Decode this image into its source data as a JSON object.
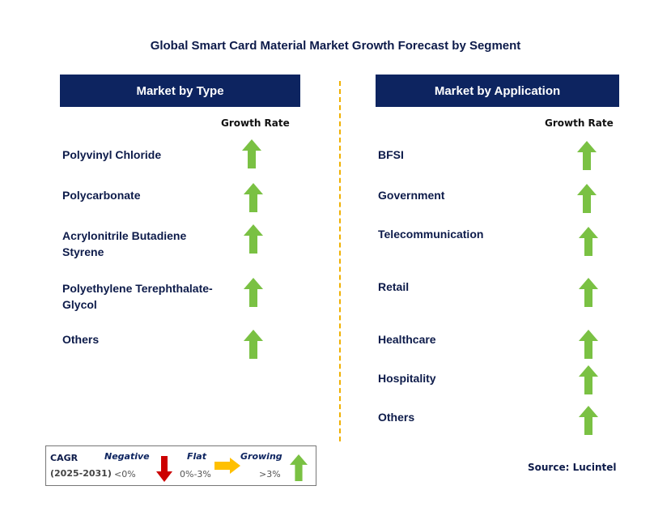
{
  "title": "Global Smart Card Material Market Growth Forecast by Segment",
  "left_panel": {
    "header": "Market by Type",
    "growth_label": "Growth Rate",
    "items": [
      {
        "label": "Polyvinyl Chloride",
        "trend": "growing"
      },
      {
        "label": "Polycarbonate",
        "trend": "growing"
      },
      {
        "label": "Acrylonitrile Butadiene Styrene",
        "trend": "growing"
      },
      {
        "label": "Polyethylene Terephthalate-Glycol",
        "trend": "growing"
      },
      {
        "label": "Others",
        "trend": "growing"
      }
    ]
  },
  "right_panel": {
    "header": "Market by Application",
    "growth_label": "Growth Rate",
    "items": [
      {
        "label": "BFSI",
        "trend": "growing"
      },
      {
        "label": "Government",
        "trend": "growing"
      },
      {
        "label": "Telecommunication",
        "trend": "growing"
      },
      {
        "label": "Retail",
        "trend": "growing"
      },
      {
        "label": "Healthcare",
        "trend": "growing"
      },
      {
        "label": "Hospitality",
        "trend": "growing"
      },
      {
        "label": "Others",
        "trend": "growing"
      }
    ]
  },
  "legend": {
    "cagr": "CAGR",
    "period": "(2025-2031)",
    "negative": {
      "label": "Negative",
      "range": "<0%",
      "color": "#cc0000",
      "icon": "down-arrow-icon"
    },
    "flat": {
      "label": "Flat",
      "range": "0%-3%",
      "color": "#ffc000",
      "icon": "right-arrow-icon"
    },
    "growing": {
      "label": "Growing",
      "range": ">3%",
      "color": "#7ac143",
      "icon": "up-arrow-icon"
    }
  },
  "source": "Source: Lucintel",
  "colors": {
    "header_bg": "#0d2460",
    "arrow_up": "#7ac143",
    "divider": "#f0b000"
  }
}
